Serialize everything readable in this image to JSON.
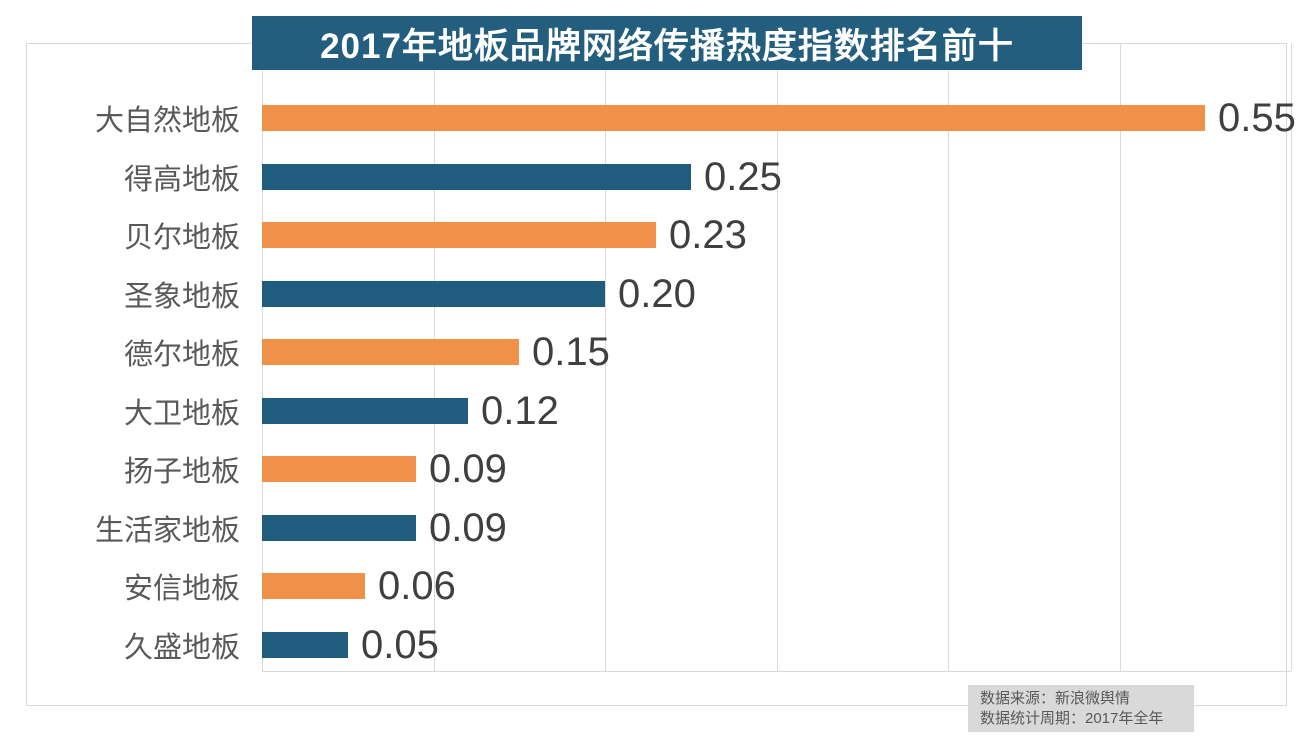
{
  "title": "2017年地板品牌网络传播热度指数排名前十",
  "footnote": {
    "line1": "数据来源：新浪微舆情",
    "line2": "数据统计周期：2017年全年"
  },
  "colors": {
    "banner_background": "#245E7E",
    "bar_orange": "#F0914A",
    "bar_teal": "#1F5C7D",
    "gridline": "#DBDBDB",
    "frame_border": "#D9D9D9",
    "category_label": "#595959",
    "value_label": "#3F3F3F",
    "footnote_background": "#D9D9D9",
    "footnote_text": "#595959",
    "title_text": "#FFFFFF"
  },
  "chart_data": {
    "type": "bar",
    "orientation": "horizontal",
    "title": "2017年地板品牌网络传播热度指数排名前十",
    "categories": [
      "大自然地板",
      "得高地板",
      "贝尔地板",
      "圣象地板",
      "德尔地板",
      "大卫地板",
      "扬子地板",
      "生活家地板",
      "安信地板",
      "久盛地板"
    ],
    "values": [
      0.55,
      0.25,
      0.23,
      0.2,
      0.15,
      0.12,
      0.09,
      0.09,
      0.06,
      0.05
    ],
    "value_labels": [
      "0.55",
      "0.25",
      "0.23",
      "0.20",
      "0.15",
      "0.12",
      "0.09",
      "0.09",
      "0.06",
      "0.05"
    ],
    "bar_palette": [
      "#F0914A",
      "#1F5C7D"
    ],
    "xlabel": "",
    "ylabel": "",
    "xlim": [
      0,
      0.6
    ],
    "grid": true,
    "grid_interval": 0.1,
    "legend": false,
    "annotations": [
      "数据来源：新浪微舆情",
      "数据统计周期：2017年全年"
    ]
  }
}
